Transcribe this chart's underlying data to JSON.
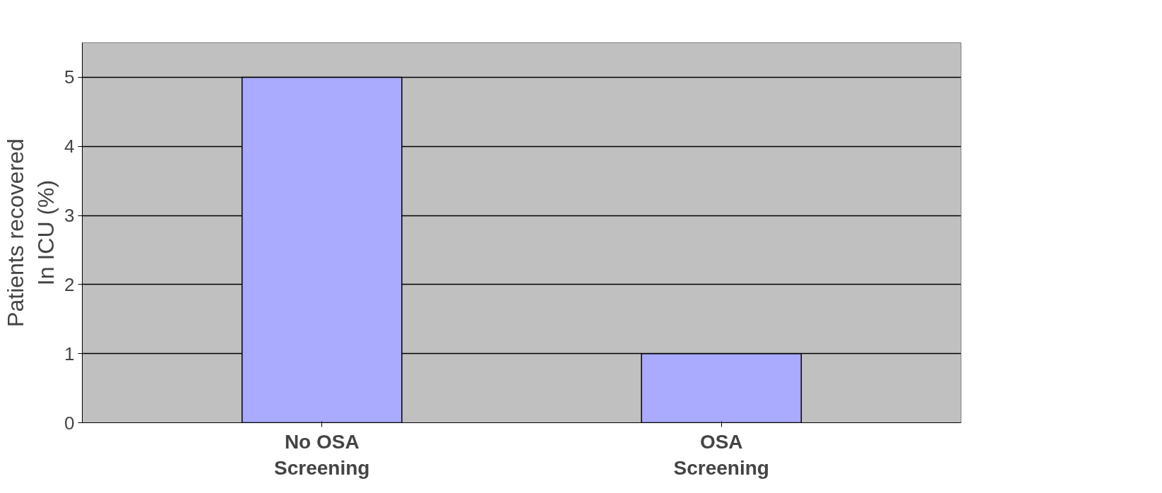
{
  "chart_data": {
    "type": "bar",
    "ylabel": "Patients recovered\nIn ICU (%)",
    "categories": [
      "No OSA\nScreening",
      "OSA\nScreening"
    ],
    "values": [
      5,
      1
    ],
    "color": "#aaaaff",
    "ylim": [
      0,
      5.5
    ],
    "yticks": [
      0,
      1,
      2,
      3,
      4,
      5
    ],
    "grid": "y"
  }
}
